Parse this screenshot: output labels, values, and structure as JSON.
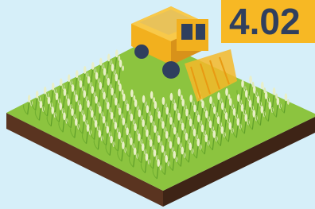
{
  "badge": {
    "label": "4.02"
  }
}
